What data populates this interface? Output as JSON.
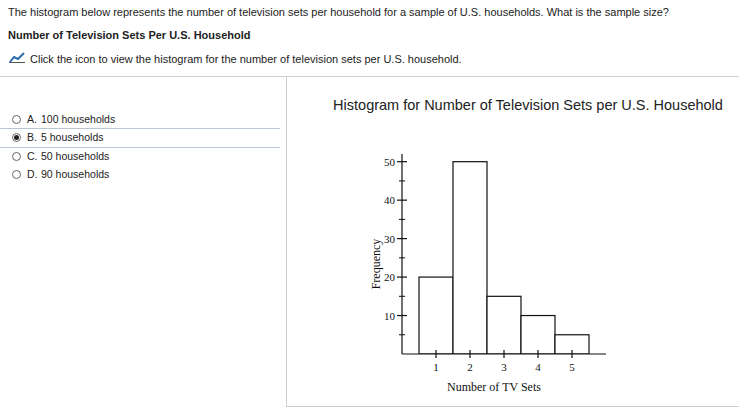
{
  "question": "The histogram below represents the number of television sets per household for a sample of U.S. households. What is the sample size?",
  "heading": "Number of Television Sets Per U.S. Household",
  "link_text": "Click the icon to view the histogram for the number of television sets per U.S. household.",
  "options": [
    {
      "letter": "A.",
      "text": "100 households"
    },
    {
      "letter": "B.",
      "text": "5 households"
    },
    {
      "letter": "C.",
      "text": "50 households"
    },
    {
      "letter": "D.",
      "text": "90 households"
    }
  ],
  "selected": 1,
  "chart_data": {
    "type": "histogram",
    "title": "Histogram for Number of Television Sets per U.S. Household",
    "x_label": "Number of TV Sets",
    "y_label": "Frequency",
    "bins": [
      0.5,
      1.5,
      2.5,
      3.5,
      4.5,
      5.5
    ],
    "values": [
      20,
      50,
      15,
      10,
      5
    ],
    "xlim": [
      0,
      6
    ],
    "ylim": [
      0,
      52
    ],
    "xticks": [
      1,
      2,
      3,
      4,
      5
    ],
    "yticks": [
      10,
      20,
      30,
      40,
      50
    ],
    "color": "#ffffff"
  }
}
